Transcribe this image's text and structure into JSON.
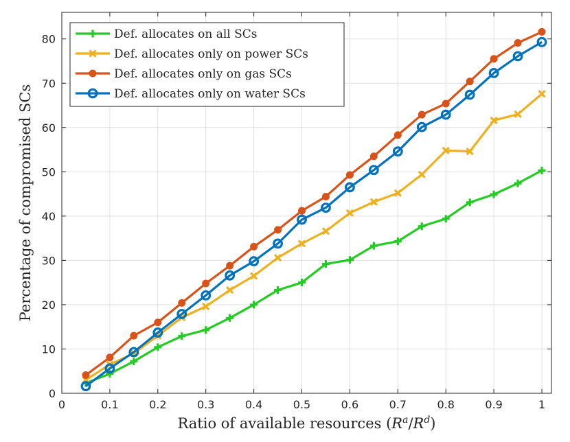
{
  "chart_data": {
    "type": "line",
    "title": "",
    "xlabel": "Ratio of available resources (R^a/R^d)",
    "xlabel_parts": {
      "prefix": "Ratio of available resources (",
      "r1": "R",
      "sup1": "a",
      "slash": "/",
      "r2": "R",
      "sup2": "d",
      "suffix": ")"
    },
    "ylabel": "Percentage of compromised SCs",
    "xlim": [
      0,
      1.02
    ],
    "ylim": [
      0,
      86
    ],
    "xticks": [
      0,
      0.1,
      0.2,
      0.3,
      0.4,
      0.5,
      0.6,
      0.7,
      0.8,
      0.9,
      1
    ],
    "xtick_labels": [
      "0",
      "0.1",
      "0.2",
      "0.3",
      "0.4",
      "0.5",
      "0.6",
      "0.7",
      "0.8",
      "0.9",
      "1"
    ],
    "yticks": [
      0,
      10,
      20,
      30,
      40,
      50,
      60,
      70,
      80
    ],
    "ytick_labels": [
      "0",
      "10",
      "20",
      "30",
      "40",
      "50",
      "60",
      "70",
      "80"
    ],
    "grid": true,
    "legend_position": "top-left",
    "x": [
      0.05,
      0.1,
      0.15,
      0.2,
      0.25,
      0.3,
      0.35,
      0.4,
      0.45,
      0.5,
      0.55,
      0.6,
      0.65,
      0.7,
      0.75,
      0.8,
      0.85,
      0.9,
      0.95,
      1.0
    ],
    "series": [
      {
        "name": "Def. allocates on all SCs",
        "color": "#22cc22",
        "marker": "plus",
        "values": [
          2.3,
          4.4,
          7.2,
          10.4,
          12.9,
          14.3,
          17.0,
          20.0,
          23.3,
          25.0,
          29.2,
          30.1,
          33.3,
          34.3,
          37.7,
          39.4,
          43.1,
          44.9,
          47.4,
          50.3
        ]
      },
      {
        "name": "Def. allocates only on power SCs",
        "color": "#edb120",
        "marker": "x",
        "values": [
          3.0,
          6.5,
          9.0,
          13.0,
          17.1,
          19.6,
          23.3,
          26.5,
          30.6,
          33.8,
          36.6,
          40.7,
          43.2,
          45.2,
          49.4,
          54.8,
          54.6,
          61.6,
          63.0,
          67.6
        ]
      },
      {
        "name": "Def. allocates only on gas SCs",
        "color": "#d95319",
        "marker": "dot",
        "values": [
          4.1,
          8.1,
          13.0,
          16.0,
          20.4,
          24.8,
          28.8,
          33.1,
          36.9,
          41.2,
          44.4,
          49.3,
          53.5,
          58.3,
          62.9,
          65.4,
          70.4,
          75.5,
          79.1,
          81.6
        ]
      },
      {
        "name": "Def. allocates only on water SCs",
        "color": "#0072bd",
        "marker": "circle",
        "values": [
          1.6,
          5.6,
          9.3,
          13.7,
          17.9,
          22.1,
          26.6,
          29.8,
          33.8,
          39.2,
          41.9,
          46.5,
          50.4,
          54.6,
          60.1,
          62.9,
          67.4,
          72.3,
          76.1,
          79.3
        ]
      }
    ]
  }
}
